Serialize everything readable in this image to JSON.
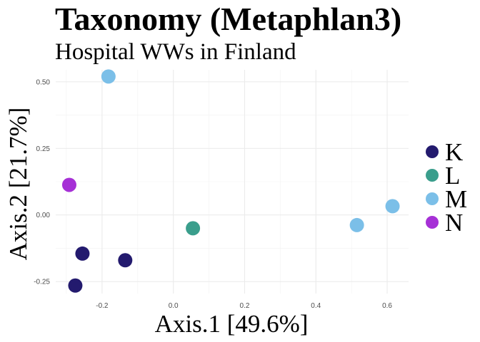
{
  "chart_data": {
    "type": "scatter",
    "title": "Taxonomy (Metaphlan3)",
    "subtitle": "Hospital WWs in Finland",
    "xlabel": "Axis.1   [49.6%]",
    "ylabel": "Axis.2   [21.7%]",
    "xlim": [
      -0.33,
      0.66
    ],
    "ylim": [
      -0.295,
      0.545
    ],
    "x_ticks": [
      -0.2,
      0.0,
      0.2,
      0.4,
      0.6
    ],
    "x_tick_labels": [
      "-0.2",
      "0.0",
      "0.2",
      "0.4",
      "0.6"
    ],
    "y_ticks": [
      -0.25,
      0.0,
      0.25,
      0.5
    ],
    "y_tick_labels": [
      "-0.25",
      "0.00",
      "0.25",
      "0.50"
    ],
    "grid": true,
    "legend_position": "right",
    "series": [
      {
        "name": "K",
        "color": "#231a6e",
        "points": [
          {
            "x": -0.255,
            "y": -0.145
          },
          {
            "x": -0.275,
            "y": -0.265
          },
          {
            "x": -0.135,
            "y": -0.17
          }
        ]
      },
      {
        "name": "L",
        "color": "#3a9e8c",
        "points": [
          {
            "x": 0.055,
            "y": -0.05
          }
        ]
      },
      {
        "name": "M",
        "color": "#7bbfe8",
        "points": [
          {
            "x": -0.182,
            "y": 0.52
          },
          {
            "x": 0.515,
            "y": -0.038
          },
          {
            "x": 0.615,
            "y": 0.033
          }
        ]
      },
      {
        "name": "N",
        "color": "#a630d6",
        "points": [
          {
            "x": -0.292,
            "y": 0.113
          }
        ]
      }
    ]
  }
}
